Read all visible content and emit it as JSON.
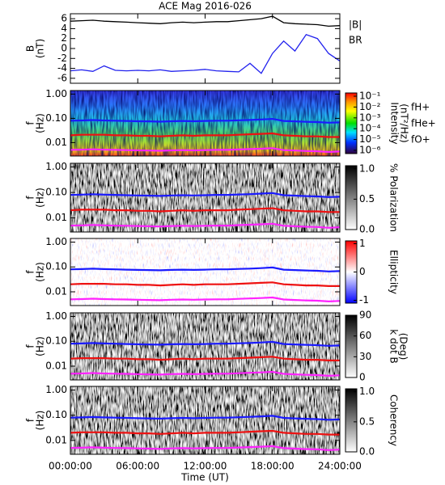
{
  "chart_data": [
    {
      "type": "line",
      "title": "ACE Mag 2016-026",
      "ylabel": [
        "B",
        "(nT)"
      ],
      "x": [
        0,
        1,
        2,
        3,
        4,
        5,
        6,
        7,
        8,
        9,
        10,
        11,
        12,
        13,
        14,
        15,
        16,
        17,
        18,
        19,
        20,
        21,
        22,
        23,
        24
      ],
      "xlim": [
        0,
        24
      ],
      "xticks": [
        0,
        6,
        12,
        18,
        24
      ],
      "ylim": [
        -7,
        7
      ],
      "yticks": [
        -6,
        -4,
        -2,
        0,
        2,
        4,
        6
      ],
      "series": [
        {
          "name": "|B|",
          "color": "#000000",
          "values": [
            5.5,
            5.6,
            5.7,
            5.5,
            5.4,
            5.3,
            5.2,
            5.1,
            5.0,
            5.2,
            5.3,
            5.2,
            5.3,
            5.4,
            5.4,
            5.6,
            5.8,
            6.0,
            6.5,
            5.2,
            5.0,
            4.9,
            4.8,
            4.5,
            4.6
          ]
        },
        {
          "name": "BR",
          "color": "#2222ee",
          "values": [
            -4.5,
            -4.3,
            -4.6,
            -3.5,
            -4.4,
            -4.5,
            -4.4,
            -4.5,
            -4.3,
            -4.6,
            -4.5,
            -4.4,
            -4.2,
            -4.5,
            -4.6,
            -4.7,
            -3.0,
            -5.0,
            -1.0,
            1.5,
            -0.5,
            2.8,
            2.0,
            -1.0,
            -2.5
          ]
        }
      ]
    },
    {
      "type": "spectrogram",
      "ylabel": [
        "f",
        "(Hz)"
      ],
      "ylog": true,
      "x": [
        0,
        1,
        2,
        3,
        4,
        5,
        6,
        7,
        8,
        9,
        10,
        11,
        12,
        13,
        14,
        15,
        16,
        17,
        18,
        19,
        20,
        21,
        22,
        23,
        24
      ],
      "xlim": [
        0,
        24
      ],
      "xticks": [
        0,
        6,
        12,
        18,
        24
      ],
      "ylim": [
        0.0028,
        1.4
      ],
      "yticks": [
        {
          "value": 1,
          "label": "1.00"
        },
        {
          "value": 0.1,
          "label": "0.10"
        },
        0.01
      ],
      "colormap": "rainbow",
      "zlog": true,
      "zlim": [
        5e-07,
        0.2
      ],
      "zlabel": [
        "Intensity",
        "(nT²/Hz)"
      ],
      "zticks": [
        {
          "value": 0.1,
          "label": "10⁻¹"
        },
        {
          "value": 0.01,
          "label": "10⁻²"
        },
        {
          "value": 0.001,
          "label": "10⁻³"
        },
        {
          "value": 0.0001,
          "label": "10⁻⁴"
        },
        {
          "value": 1e-05,
          "label": "10⁻⁵"
        },
        {
          "value": 1e-06,
          "label": "10⁻⁶"
        }
      ],
      "legend": true,
      "series": [
        {
          "name": "fH+",
          "color": "#1a1aff",
          "values": [
            0.08,
            0.082,
            0.085,
            0.082,
            0.08,
            0.078,
            0.076,
            0.075,
            0.073,
            0.076,
            0.078,
            0.076,
            0.078,
            0.08,
            0.08,
            0.083,
            0.086,
            0.09,
            0.095,
            0.078,
            0.075,
            0.072,
            0.07,
            0.066,
            0.068
          ]
        },
        {
          "name": "fHe+",
          "color": "#ee1111",
          "values": [
            0.02,
            0.021,
            0.021,
            0.021,
            0.02,
            0.02,
            0.019,
            0.019,
            0.018,
            0.019,
            0.02,
            0.019,
            0.02,
            0.02,
            0.02,
            0.021,
            0.022,
            0.023,
            0.024,
            0.02,
            0.019,
            0.018,
            0.018,
            0.017,
            0.017
          ]
        },
        {
          "name": "fO+",
          "color": "#ff22ff",
          "values": [
            0.005,
            0.0051,
            0.0053,
            0.0051,
            0.005,
            0.0049,
            0.0048,
            0.0047,
            0.0046,
            0.0048,
            0.0049,
            0.0048,
            0.0049,
            0.005,
            0.005,
            0.0052,
            0.0054,
            0.0056,
            0.0059,
            0.0049,
            0.0047,
            0.0045,
            0.0044,
            0.0041,
            0.0043
          ]
        }
      ]
    },
    {
      "type": "spectrogram",
      "ylabel": [
        "f",
        "(Hz)"
      ],
      "ylog": true,
      "x": [
        0,
        1,
        2,
        3,
        4,
        5,
        6,
        7,
        8,
        9,
        10,
        11,
        12,
        13,
        14,
        15,
        16,
        17,
        18,
        19,
        20,
        21,
        22,
        23,
        24
      ],
      "xlim": [
        0,
        24
      ],
      "xticks": [
        0,
        6,
        12,
        18,
        24
      ],
      "ylim": [
        0.0028,
        1.4
      ],
      "yticks": [
        {
          "value": 1,
          "label": "1.00"
        },
        {
          "value": 0.1,
          "label": "0.10"
        },
        0.01
      ],
      "colormap": "grays",
      "zlim": [
        0,
        1.05
      ],
      "zlabel": [
        "% Polarization"
      ],
      "zticks": [
        {
          "value": 1,
          "label": "1.0"
        },
        0.5,
        {
          "value": 0,
          "label": "0.0"
        }
      ],
      "series": [
        {
          "color": "#1a1aff",
          "values": [
            0.08,
            0.082,
            0.085,
            0.082,
            0.08,
            0.078,
            0.076,
            0.075,
            0.073,
            0.076,
            0.078,
            0.076,
            0.078,
            0.08,
            0.08,
            0.083,
            0.086,
            0.09,
            0.095,
            0.078,
            0.075,
            0.072,
            0.07,
            0.066,
            0.068
          ]
        },
        {
          "color": "#ee1111",
          "values": [
            0.02,
            0.021,
            0.021,
            0.021,
            0.02,
            0.02,
            0.019,
            0.019,
            0.018,
            0.019,
            0.02,
            0.019,
            0.02,
            0.02,
            0.02,
            0.021,
            0.022,
            0.023,
            0.024,
            0.02,
            0.019,
            0.018,
            0.018,
            0.017,
            0.017
          ]
        },
        {
          "color": "#ff22ff",
          "values": [
            0.005,
            0.0051,
            0.0053,
            0.0051,
            0.005,
            0.0049,
            0.0048,
            0.0047,
            0.0046,
            0.0048,
            0.0049,
            0.0048,
            0.0049,
            0.005,
            0.005,
            0.0052,
            0.0054,
            0.0056,
            0.0059,
            0.0049,
            0.0047,
            0.0045,
            0.0044,
            0.0041,
            0.0043
          ]
        }
      ]
    },
    {
      "type": "spectrogram",
      "ylabel": [
        "f",
        "(Hz)"
      ],
      "ylog": true,
      "x": [
        0,
        1,
        2,
        3,
        4,
        5,
        6,
        7,
        8,
        9,
        10,
        11,
        12,
        13,
        14,
        15,
        16,
        17,
        18,
        19,
        20,
        21,
        22,
        23,
        24
      ],
      "xlim": [
        0,
        24
      ],
      "xticks": [
        0,
        6,
        12,
        18,
        24
      ],
      "ylim": [
        0.0028,
        1.4
      ],
      "yticks": [
        {
          "value": 1,
          "label": "1.00"
        },
        {
          "value": 0.1,
          "label": "0.10"
        },
        0.01
      ],
      "colormap": "bwr",
      "zlim": [
        -1.1,
        1.1
      ],
      "zlabel": [
        "Ellipticity"
      ],
      "zticks": [
        1,
        0,
        -1
      ],
      "series": [
        {
          "color": "#1a1aff",
          "values": [
            0.08,
            0.082,
            0.085,
            0.082,
            0.08,
            0.078,
            0.076,
            0.075,
            0.073,
            0.076,
            0.078,
            0.076,
            0.078,
            0.08,
            0.08,
            0.083,
            0.086,
            0.09,
            0.095,
            0.078,
            0.075,
            0.072,
            0.07,
            0.066,
            0.068
          ]
        },
        {
          "color": "#ee1111",
          "values": [
            0.02,
            0.021,
            0.021,
            0.021,
            0.02,
            0.02,
            0.019,
            0.019,
            0.018,
            0.019,
            0.02,
            0.019,
            0.02,
            0.02,
            0.02,
            0.021,
            0.022,
            0.023,
            0.024,
            0.02,
            0.019,
            0.018,
            0.018,
            0.017,
            0.017
          ]
        },
        {
          "color": "#ff22ff",
          "values": [
            0.005,
            0.0051,
            0.0053,
            0.0051,
            0.005,
            0.0049,
            0.0048,
            0.0047,
            0.0046,
            0.0048,
            0.0049,
            0.0048,
            0.0049,
            0.005,
            0.005,
            0.0052,
            0.0054,
            0.0056,
            0.0059,
            0.0049,
            0.0047,
            0.0045,
            0.0044,
            0.0041,
            0.0043
          ]
        }
      ]
    },
    {
      "type": "spectrogram",
      "ylabel": [
        "f",
        "(Hz)"
      ],
      "ylog": true,
      "x": [
        0,
        1,
        2,
        3,
        4,
        5,
        6,
        7,
        8,
        9,
        10,
        11,
        12,
        13,
        14,
        15,
        16,
        17,
        18,
        19,
        20,
        21,
        22,
        23,
        24
      ],
      "xlim": [
        0,
        24
      ],
      "xticks": [
        0,
        6,
        12,
        18,
        24
      ],
      "ylim": [
        0.0028,
        1.4
      ],
      "yticks": [
        {
          "value": 1,
          "label": "1.00"
        },
        {
          "value": 0.1,
          "label": "0.10"
        },
        0.01
      ],
      "colormap": "grays",
      "zlim": [
        0,
        90
      ],
      "zlabel": [
        "k dot B",
        "(Deg)"
      ],
      "zticks": [
        90,
        60,
        30,
        0
      ],
      "series": [
        {
          "color": "#1a1aff",
          "values": [
            0.08,
            0.082,
            0.085,
            0.082,
            0.08,
            0.078,
            0.076,
            0.075,
            0.073,
            0.076,
            0.078,
            0.076,
            0.078,
            0.08,
            0.08,
            0.083,
            0.086,
            0.09,
            0.095,
            0.078,
            0.075,
            0.072,
            0.07,
            0.066,
            0.068
          ]
        },
        {
          "color": "#ee1111",
          "values": [
            0.02,
            0.021,
            0.021,
            0.021,
            0.02,
            0.02,
            0.019,
            0.019,
            0.018,
            0.019,
            0.02,
            0.019,
            0.02,
            0.02,
            0.02,
            0.021,
            0.022,
            0.023,
            0.024,
            0.02,
            0.019,
            0.018,
            0.018,
            0.017,
            0.017
          ]
        },
        {
          "color": "#ff22ff",
          "values": [
            0.005,
            0.0051,
            0.0053,
            0.0051,
            0.005,
            0.0049,
            0.0048,
            0.0047,
            0.0046,
            0.0048,
            0.0049,
            0.0048,
            0.0049,
            0.005,
            0.005,
            0.0052,
            0.0054,
            0.0056,
            0.0059,
            0.0049,
            0.0047,
            0.0045,
            0.0044,
            0.0041,
            0.0043
          ]
        }
      ]
    },
    {
      "type": "spectrogram",
      "ylabel": [
        "f",
        "(Hz)"
      ],
      "ylog": true,
      "x": [
        0,
        1,
        2,
        3,
        4,
        5,
        6,
        7,
        8,
        9,
        10,
        11,
        12,
        13,
        14,
        15,
        16,
        17,
        18,
        19,
        20,
        21,
        22,
        23,
        24
      ],
      "xlim": [
        0,
        24
      ],
      "xlabel": "Time (UT)",
      "xticks": [
        {
          "value": 0,
          "label": "00:00:00"
        },
        {
          "value": 6,
          "label": "06:00:00"
        },
        {
          "value": 12,
          "label": "12:00:00"
        },
        {
          "value": 18,
          "label": "18:00:00"
        },
        {
          "value": 24,
          "label": "24:00:00"
        }
      ],
      "ylim": [
        0.0028,
        1.4
      ],
      "yticks": [
        {
          "value": 1,
          "label": "1.00"
        },
        {
          "value": 0.1,
          "label": "0.10"
        },
        0.01
      ],
      "colormap": "grays",
      "zlim": [
        0,
        1.05
      ],
      "zlabel": [
        "Coherency"
      ],
      "zticks": [
        {
          "value": 1,
          "label": "1.0"
        },
        0.5,
        {
          "value": 0,
          "label": "0.0"
        }
      ],
      "series": [
        {
          "color": "#1a1aff",
          "values": [
            0.08,
            0.082,
            0.085,
            0.082,
            0.08,
            0.078,
            0.076,
            0.075,
            0.073,
            0.076,
            0.078,
            0.076,
            0.078,
            0.08,
            0.08,
            0.083,
            0.086,
            0.09,
            0.095,
            0.078,
            0.075,
            0.072,
            0.07,
            0.066,
            0.068
          ]
        },
        {
          "color": "#ee1111",
          "values": [
            0.02,
            0.021,
            0.021,
            0.021,
            0.02,
            0.02,
            0.019,
            0.019,
            0.018,
            0.019,
            0.02,
            0.019,
            0.02,
            0.02,
            0.02,
            0.021,
            0.022,
            0.023,
            0.024,
            0.02,
            0.019,
            0.018,
            0.018,
            0.017,
            0.017
          ]
        },
        {
          "color": "#ff22ff",
          "values": [
            0.005,
            0.0051,
            0.0053,
            0.0051,
            0.005,
            0.0049,
            0.0048,
            0.0047,
            0.0046,
            0.0048,
            0.0049,
            0.0048,
            0.0049,
            0.005,
            0.005,
            0.0052,
            0.0054,
            0.0056,
            0.0059,
            0.0049,
            0.0047,
            0.0045,
            0.0044,
            0.0041,
            0.0043
          ]
        }
      ]
    }
  ]
}
